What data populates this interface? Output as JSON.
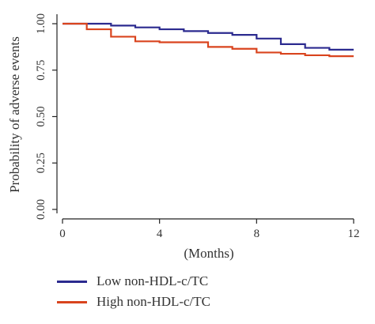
{
  "chart_data": {
    "type": "line",
    "step": true,
    "ylabel": "Probability of adverse events",
    "xlabel": "(Months)",
    "xlim": [
      0,
      12
    ],
    "ylim": [
      0,
      1
    ],
    "xticks": [
      "0",
      "4",
      "8",
      "12"
    ],
    "xtick_values": [
      0,
      4,
      8,
      12
    ],
    "yticks": [
      "0.00",
      "0.25",
      "0.50",
      "0.75",
      "1.00"
    ],
    "ytick_values": [
      0,
      0.25,
      0.5,
      0.75,
      1.0
    ],
    "legend_position": "bottom",
    "series": [
      {
        "name": "Low non-HDL-c/TC",
        "color": "#2b2a8f",
        "x": [
          0,
          1,
          2,
          3,
          4,
          5,
          6,
          7,
          8,
          9,
          10,
          11,
          12
        ],
        "y": [
          1.0,
          1.0,
          0.99,
          0.98,
          0.97,
          0.96,
          0.95,
          0.94,
          0.92,
          0.89,
          0.87,
          0.86,
          0.86
        ]
      },
      {
        "name": "High non-HDL-c/TC",
        "color": "#d9441e",
        "x": [
          0,
          1,
          2,
          3,
          4,
          5,
          6,
          7,
          8,
          9,
          10,
          11,
          12
        ],
        "y": [
          1.0,
          0.97,
          0.93,
          0.905,
          0.9,
          0.9,
          0.875,
          0.865,
          0.845,
          0.838,
          0.83,
          0.825,
          0.825
        ]
      }
    ]
  }
}
